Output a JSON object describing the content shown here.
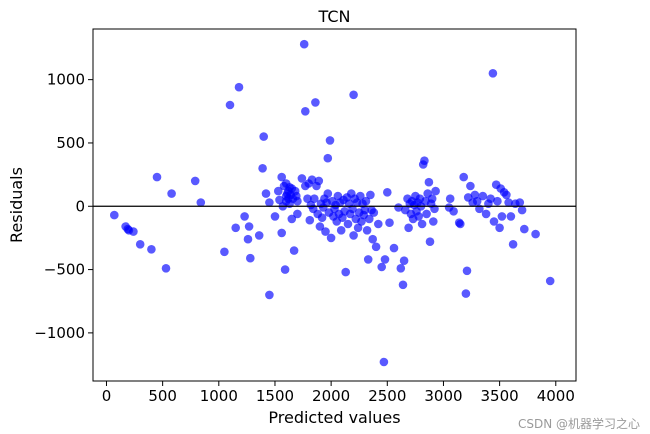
{
  "chart_data": {
    "type": "scatter",
    "title": "TCN",
    "xlabel": "Predicted values",
    "ylabel": "Residuals",
    "xlim": [
      -120,
      4180
    ],
    "ylim": [
      -1380,
      1400
    ],
    "xticks": [
      0,
      500,
      1000,
      1500,
      2000,
      2500,
      3000,
      3500,
      4000
    ],
    "yticks": [
      -1000,
      -500,
      0,
      500,
      1000
    ],
    "xtick_labels": [
      "0",
      "500",
      "1000",
      "1500",
      "2000",
      "2500",
      "3000",
      "3500",
      "4000"
    ],
    "ytick_labels": [
      "−1000",
      "−500",
      "0",
      "500",
      "1000"
    ],
    "reference_line_y": 0,
    "grid": false,
    "marker_color": "#0000ff",
    "marker_alpha": 0.65,
    "line_color": "#000000",
    "series": [
      {
        "points": [
          [
            70,
            -70
          ],
          [
            170,
            -160
          ],
          [
            190,
            -180
          ],
          [
            200,
            -190
          ],
          [
            240,
            -200
          ],
          [
            300,
            -300
          ],
          [
            400,
            -340
          ],
          [
            450,
            230
          ],
          [
            530,
            -490
          ],
          [
            580,
            100
          ],
          [
            790,
            200
          ],
          [
            840,
            30
          ],
          [
            1050,
            -360
          ],
          [
            1100,
            800
          ],
          [
            1150,
            -170
          ],
          [
            1180,
            940
          ],
          [
            1230,
            -80
          ],
          [
            1260,
            -260
          ],
          [
            1280,
            -410
          ],
          [
            1270,
            -160
          ],
          [
            1360,
            -230
          ],
          [
            1390,
            300
          ],
          [
            1400,
            550
          ],
          [
            1420,
            100
          ],
          [
            1450,
            -700
          ],
          [
            1450,
            30
          ],
          [
            1500,
            -80
          ],
          [
            1530,
            120
          ],
          [
            1540,
            50
          ],
          [
            1560,
            230
          ],
          [
            1560,
            -210
          ],
          [
            1570,
            0
          ],
          [
            1580,
            160
          ],
          [
            1590,
            -500
          ],
          [
            1600,
            40
          ],
          [
            1600,
            80
          ],
          [
            1600,
            180
          ],
          [
            1610,
            100
          ],
          [
            1620,
            120
          ],
          [
            1620,
            60
          ],
          [
            1630,
            150
          ],
          [
            1630,
            20
          ],
          [
            1640,
            90
          ],
          [
            1650,
            -100
          ],
          [
            1650,
            140
          ],
          [
            1660,
            60
          ],
          [
            1670,
            -350
          ],
          [
            1680,
            120
          ],
          [
            1690,
            80
          ],
          [
            1700,
            40
          ],
          [
            1700,
            -60
          ],
          [
            1740,
            220
          ],
          [
            1760,
            1280
          ],
          [
            1770,
            160
          ],
          [
            1770,
            750
          ],
          [
            1790,
            60
          ],
          [
            1800,
            180
          ],
          [
            1810,
            -110
          ],
          [
            1820,
            10
          ],
          [
            1830,
            210
          ],
          [
            1840,
            -20
          ],
          [
            1850,
            60
          ],
          [
            1860,
            820
          ],
          [
            1870,
            160
          ],
          [
            1880,
            -60
          ],
          [
            1890,
            200
          ],
          [
            1900,
            -160
          ],
          [
            1910,
            20
          ],
          [
            1920,
            -90
          ],
          [
            1930,
            -10
          ],
          [
            1940,
            60
          ],
          [
            1950,
            -200
          ],
          [
            1960,
            30
          ],
          [
            1970,
            100
          ],
          [
            1970,
            380
          ],
          [
            1980,
            -50
          ],
          [
            1990,
            520
          ],
          [
            2000,
            -250
          ],
          [
            2010,
            40
          ],
          [
            2020,
            -80
          ],
          [
            2030,
            -20
          ],
          [
            2040,
            10
          ],
          [
            2050,
            -120
          ],
          [
            2060,
            80
          ],
          [
            2070,
            -60
          ],
          [
            2080,
            30
          ],
          [
            2090,
            -190
          ],
          [
            2100,
            -90
          ],
          [
            2110,
            50
          ],
          [
            2120,
            -40
          ],
          [
            2130,
            -520
          ],
          [
            2140,
            70
          ],
          [
            2150,
            -140
          ],
          [
            2160,
            20
          ],
          [
            2170,
            -60
          ],
          [
            2180,
            100
          ],
          [
            2190,
            -20
          ],
          [
            2200,
            880
          ],
          [
            2200,
            -230
          ],
          [
            2210,
            60
          ],
          [
            2220,
            -100
          ],
          [
            2230,
            30
          ],
          [
            2240,
            -170
          ],
          [
            2250,
            -50
          ],
          [
            2260,
            80
          ],
          [
            2270,
            -120
          ],
          [
            2280,
            20
          ],
          [
            2290,
            -70
          ],
          [
            2300,
            -30
          ],
          [
            2310,
            40
          ],
          [
            2320,
            -190
          ],
          [
            2330,
            -420
          ],
          [
            2340,
            -100
          ],
          [
            2350,
            90
          ],
          [
            2360,
            -30
          ],
          [
            2370,
            -260
          ],
          [
            2380,
            -50
          ],
          [
            2400,
            -320
          ],
          [
            2420,
            -140
          ],
          [
            2450,
            -480
          ],
          [
            2470,
            -1230
          ],
          [
            2480,
            -420
          ],
          [
            2500,
            110
          ],
          [
            2520,
            -130
          ],
          [
            2560,
            -330
          ],
          [
            2600,
            -10
          ],
          [
            2620,
            -490
          ],
          [
            2640,
            -620
          ],
          [
            2650,
            -430
          ],
          [
            2660,
            -30
          ],
          [
            2680,
            60
          ],
          [
            2690,
            -170
          ],
          [
            2700,
            20
          ],
          [
            2710,
            -60
          ],
          [
            2720,
            40
          ],
          [
            2730,
            -100
          ],
          [
            2740,
            10
          ],
          [
            2750,
            80
          ],
          [
            2760,
            -40
          ],
          [
            2770,
            30
          ],
          [
            2780,
            -80
          ],
          [
            2790,
            60
          ],
          [
            2800,
            0
          ],
          [
            2810,
            -140
          ],
          [
            2820,
            330
          ],
          [
            2830,
            360
          ],
          [
            2840,
            40
          ],
          [
            2850,
            -60
          ],
          [
            2860,
            100
          ],
          [
            2870,
            190
          ],
          [
            2880,
            -280
          ],
          [
            2890,
            20
          ],
          [
            2900,
            60
          ],
          [
            2910,
            -120
          ],
          [
            2920,
            -20
          ],
          [
            2930,
            120
          ],
          [
            3050,
            -10
          ],
          [
            3060,
            60
          ],
          [
            3090,
            -40
          ],
          [
            3140,
            -130
          ],
          [
            3150,
            -140
          ],
          [
            3180,
            230
          ],
          [
            3200,
            -690
          ],
          [
            3210,
            -510
          ],
          [
            3220,
            70
          ],
          [
            3240,
            160
          ],
          [
            3260,
            30
          ],
          [
            3280,
            90
          ],
          [
            3300,
            40
          ],
          [
            3320,
            -20
          ],
          [
            3350,
            80
          ],
          [
            3380,
            -60
          ],
          [
            3400,
            20
          ],
          [
            3420,
            60
          ],
          [
            3440,
            1050
          ],
          [
            3450,
            -120
          ],
          [
            3470,
            170
          ],
          [
            3480,
            40
          ],
          [
            3500,
            -170
          ],
          [
            3510,
            140
          ],
          [
            3520,
            -80
          ],
          [
            3540,
            110
          ],
          [
            3560,
            90
          ],
          [
            3580,
            30
          ],
          [
            3600,
            -80
          ],
          [
            3620,
            -300
          ],
          [
            3640,
            20
          ],
          [
            3680,
            30
          ],
          [
            3700,
            -30
          ],
          [
            3720,
            -180
          ],
          [
            3820,
            -220
          ],
          [
            3950,
            -590
          ]
        ]
      }
    ]
  },
  "watermark": "CSDN @机器学习之心"
}
